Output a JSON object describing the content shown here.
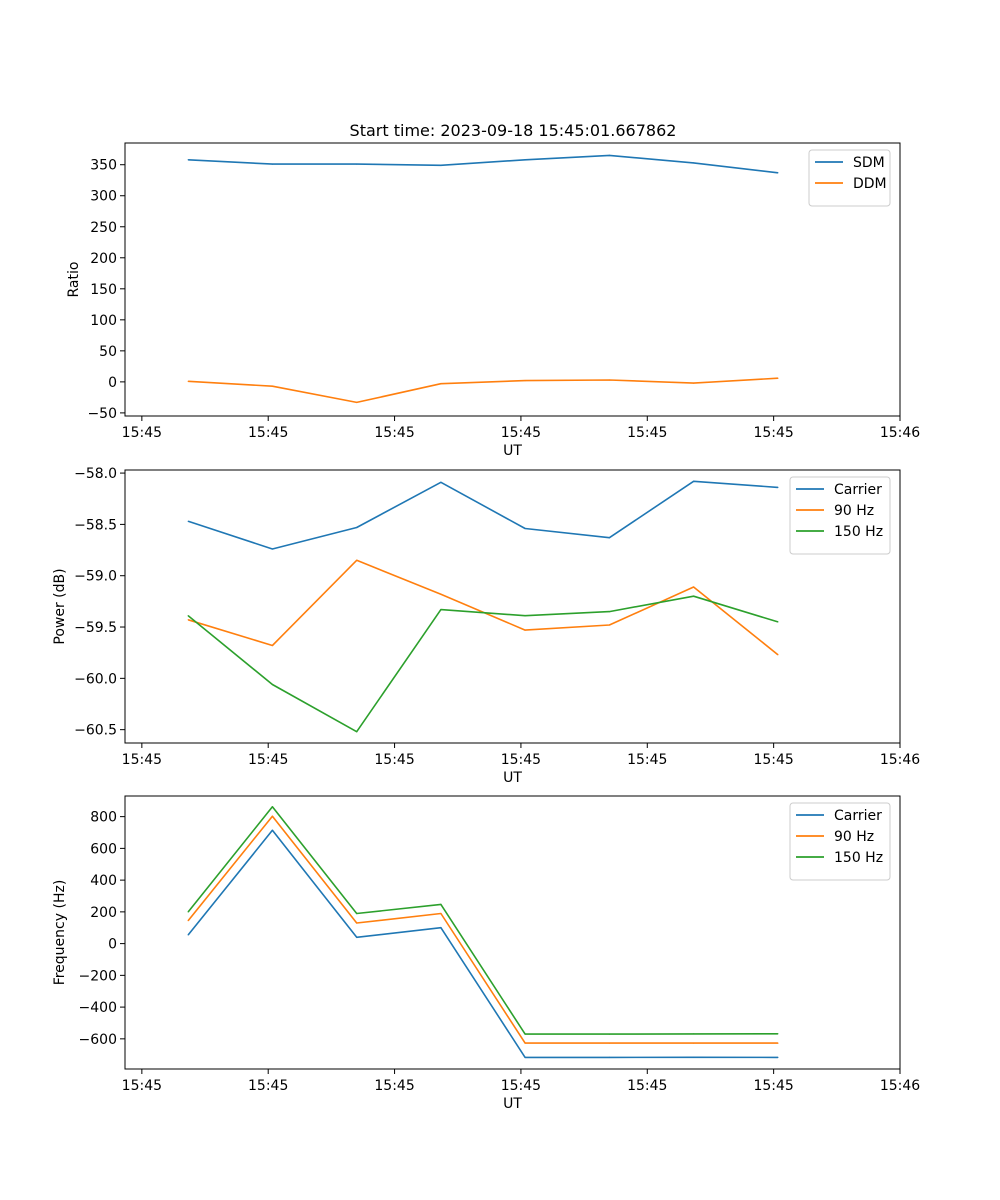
{
  "figure": {
    "title": "Start time: 2023-09-18 15:45:01.667862"
  },
  "chart_data": [
    {
      "type": "line",
      "title": "Start time: 2023-09-18 15:45:01.667862",
      "xlabel": "UT",
      "ylabel": "Ratio",
      "xlim": [
        0,
        9.2
      ],
      "ylim": [
        -55,
        385
      ],
      "x": [
        0.75,
        1.75,
        2.75,
        3.75,
        4.75,
        5.75,
        6.75,
        7.75
      ],
      "x_ticks": [
        0.2,
        1.7,
        3.2,
        4.7,
        6.2,
        7.7,
        9.2
      ],
      "x_tick_labels": [
        "15:45",
        "15:45",
        "15:45",
        "15:45",
        "15:45",
        "15:45",
        "15:46"
      ],
      "y_ticks": [
        -50,
        0,
        50,
        100,
        150,
        200,
        250,
        300,
        350
      ],
      "y_tick_labels": [
        "−50",
        "0",
        "50",
        "100",
        "150",
        "200",
        "250",
        "300",
        "350"
      ],
      "legend": "top-right",
      "series": [
        {
          "name": "SDM",
          "color": "#1f77b4",
          "values": [
            358,
            351,
            351,
            349,
            358,
            365,
            353,
            337
          ]
        },
        {
          "name": "DDM",
          "color": "#ff7f0e",
          "values": [
            1,
            -7,
            -33,
            -3,
            2,
            3,
            -2,
            6
          ]
        }
      ]
    },
    {
      "type": "line",
      "title": "",
      "xlabel": "UT",
      "ylabel": "Power (dB)",
      "xlim": [
        0,
        9.2
      ],
      "ylim": [
        -60.63,
        -57.97
      ],
      "x": [
        0.75,
        1.75,
        2.75,
        3.75,
        4.75,
        5.75,
        6.75,
        7.75
      ],
      "x_ticks": [
        0.2,
        1.7,
        3.2,
        4.7,
        6.2,
        7.7,
        9.2
      ],
      "x_tick_labels": [
        "15:45",
        "15:45",
        "15:45",
        "15:45",
        "15:45",
        "15:45",
        "15:46"
      ],
      "y_ticks": [
        -60.5,
        -60.0,
        -59.5,
        -59.0,
        -58.5,
        -58.0
      ],
      "y_tick_labels": [
        "−60.5",
        "−60.0",
        "−59.5",
        "−59.0",
        "−58.5",
        "−58.0"
      ],
      "legend": "top-right",
      "series": [
        {
          "name": "Carrier",
          "color": "#1f77b4",
          "values": [
            -58.47,
            -58.74,
            -58.53,
            -58.09,
            -58.54,
            -58.63,
            -58.08,
            -58.14
          ]
        },
        {
          "name": "90 Hz",
          "color": "#ff7f0e",
          "values": [
            -59.43,
            -59.68,
            -58.85,
            -59.18,
            -59.53,
            -59.48,
            -59.11,
            -59.77
          ]
        },
        {
          "name": "150 Hz",
          "color": "#2ca02c",
          "values": [
            -59.39,
            -60.06,
            -60.52,
            -59.33,
            -59.39,
            -59.35,
            -59.2,
            -59.45
          ]
        }
      ]
    },
    {
      "type": "line",
      "title": "",
      "xlabel": "UT",
      "ylabel": "Frequency (Hz)",
      "xlim": [
        0,
        9.2
      ],
      "ylim": [
        -790,
        930
      ],
      "x": [
        0.75,
        1.75,
        2.75,
        3.75,
        4.75,
        5.75,
        6.75,
        7.75
      ],
      "x_ticks": [
        0.2,
        1.7,
        3.2,
        4.7,
        6.2,
        7.7,
        9.2
      ],
      "x_tick_labels": [
        "15:45",
        "15:45",
        "15:45",
        "15:45",
        "15:45",
        "15:45",
        "15:46"
      ],
      "y_ticks": [
        -600,
        -400,
        -200,
        0,
        200,
        400,
        600,
        800
      ],
      "y_tick_labels": [
        "−600",
        "−400",
        "−200",
        "0",
        "200",
        "400",
        "600",
        "800"
      ],
      "legend": "top-right",
      "series": [
        {
          "name": "Carrier",
          "color": "#1f77b4",
          "values": [
            55,
            714,
            40,
            100,
            -717,
            -717,
            -716,
            -717
          ]
        },
        {
          "name": "90 Hz",
          "color": "#ff7f0e",
          "values": [
            145,
            803,
            130,
            190,
            -627,
            -627,
            -627,
            -627
          ]
        },
        {
          "name": "150 Hz",
          "color": "#2ca02c",
          "values": [
            200,
            862,
            190,
            247,
            -570,
            -570,
            -569,
            -568
          ]
        }
      ]
    }
  ]
}
